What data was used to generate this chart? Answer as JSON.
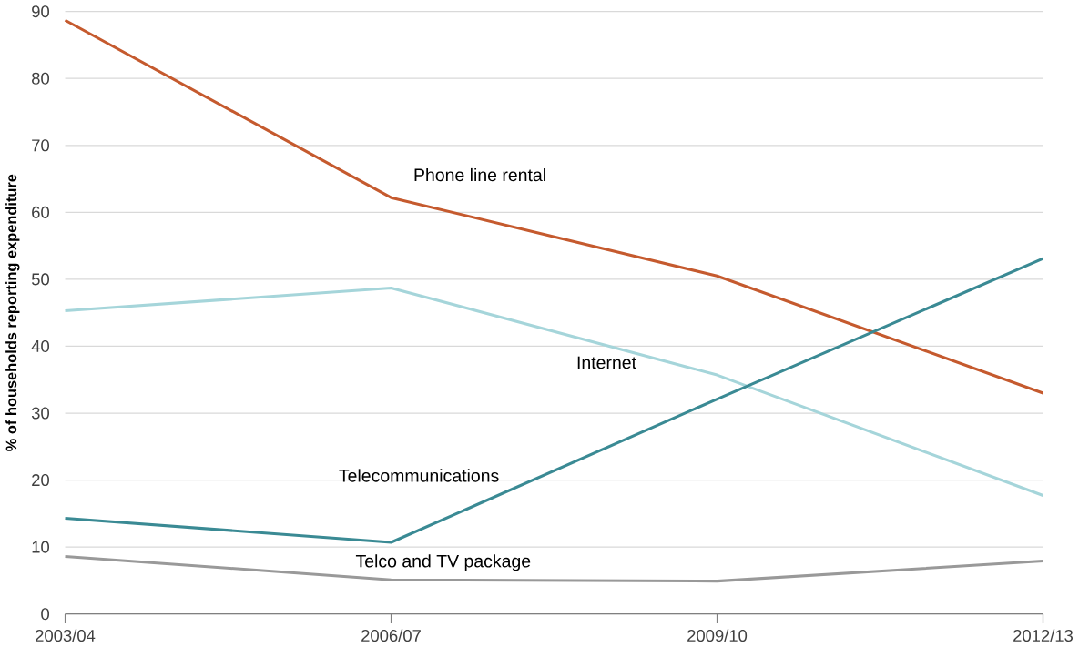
{
  "chart_data": {
    "type": "line",
    "ylabel": "% of households reporting expenditure",
    "categories": [
      "2003/04",
      "2006/07",
      "2009/10",
      "2012/13"
    ],
    "series": [
      {
        "name": "Phone line rental",
        "color": "#c55a2e",
        "values": [
          88.7,
          62.2,
          50.5,
          33
        ]
      },
      {
        "name": "Internet",
        "color": "#a5d5da",
        "values": [
          45.3,
          48.7,
          35.7,
          17.7
        ]
      },
      {
        "name": "Telecommunications",
        "color": "#3a8a94",
        "values": [
          14.3,
          10.7,
          32.1,
          53.1
        ]
      },
      {
        "name": "Telco and TV package",
        "color": "#999999",
        "values": [
          8.6,
          5.1,
          4.9,
          7.9
        ]
      }
    ],
    "ylim": [
      0,
      90
    ],
    "yticks": [
      0,
      10,
      20,
      30,
      40,
      50,
      60,
      70,
      80,
      90
    ],
    "grid": "y",
    "marker": "none",
    "line_style": "solid"
  }
}
